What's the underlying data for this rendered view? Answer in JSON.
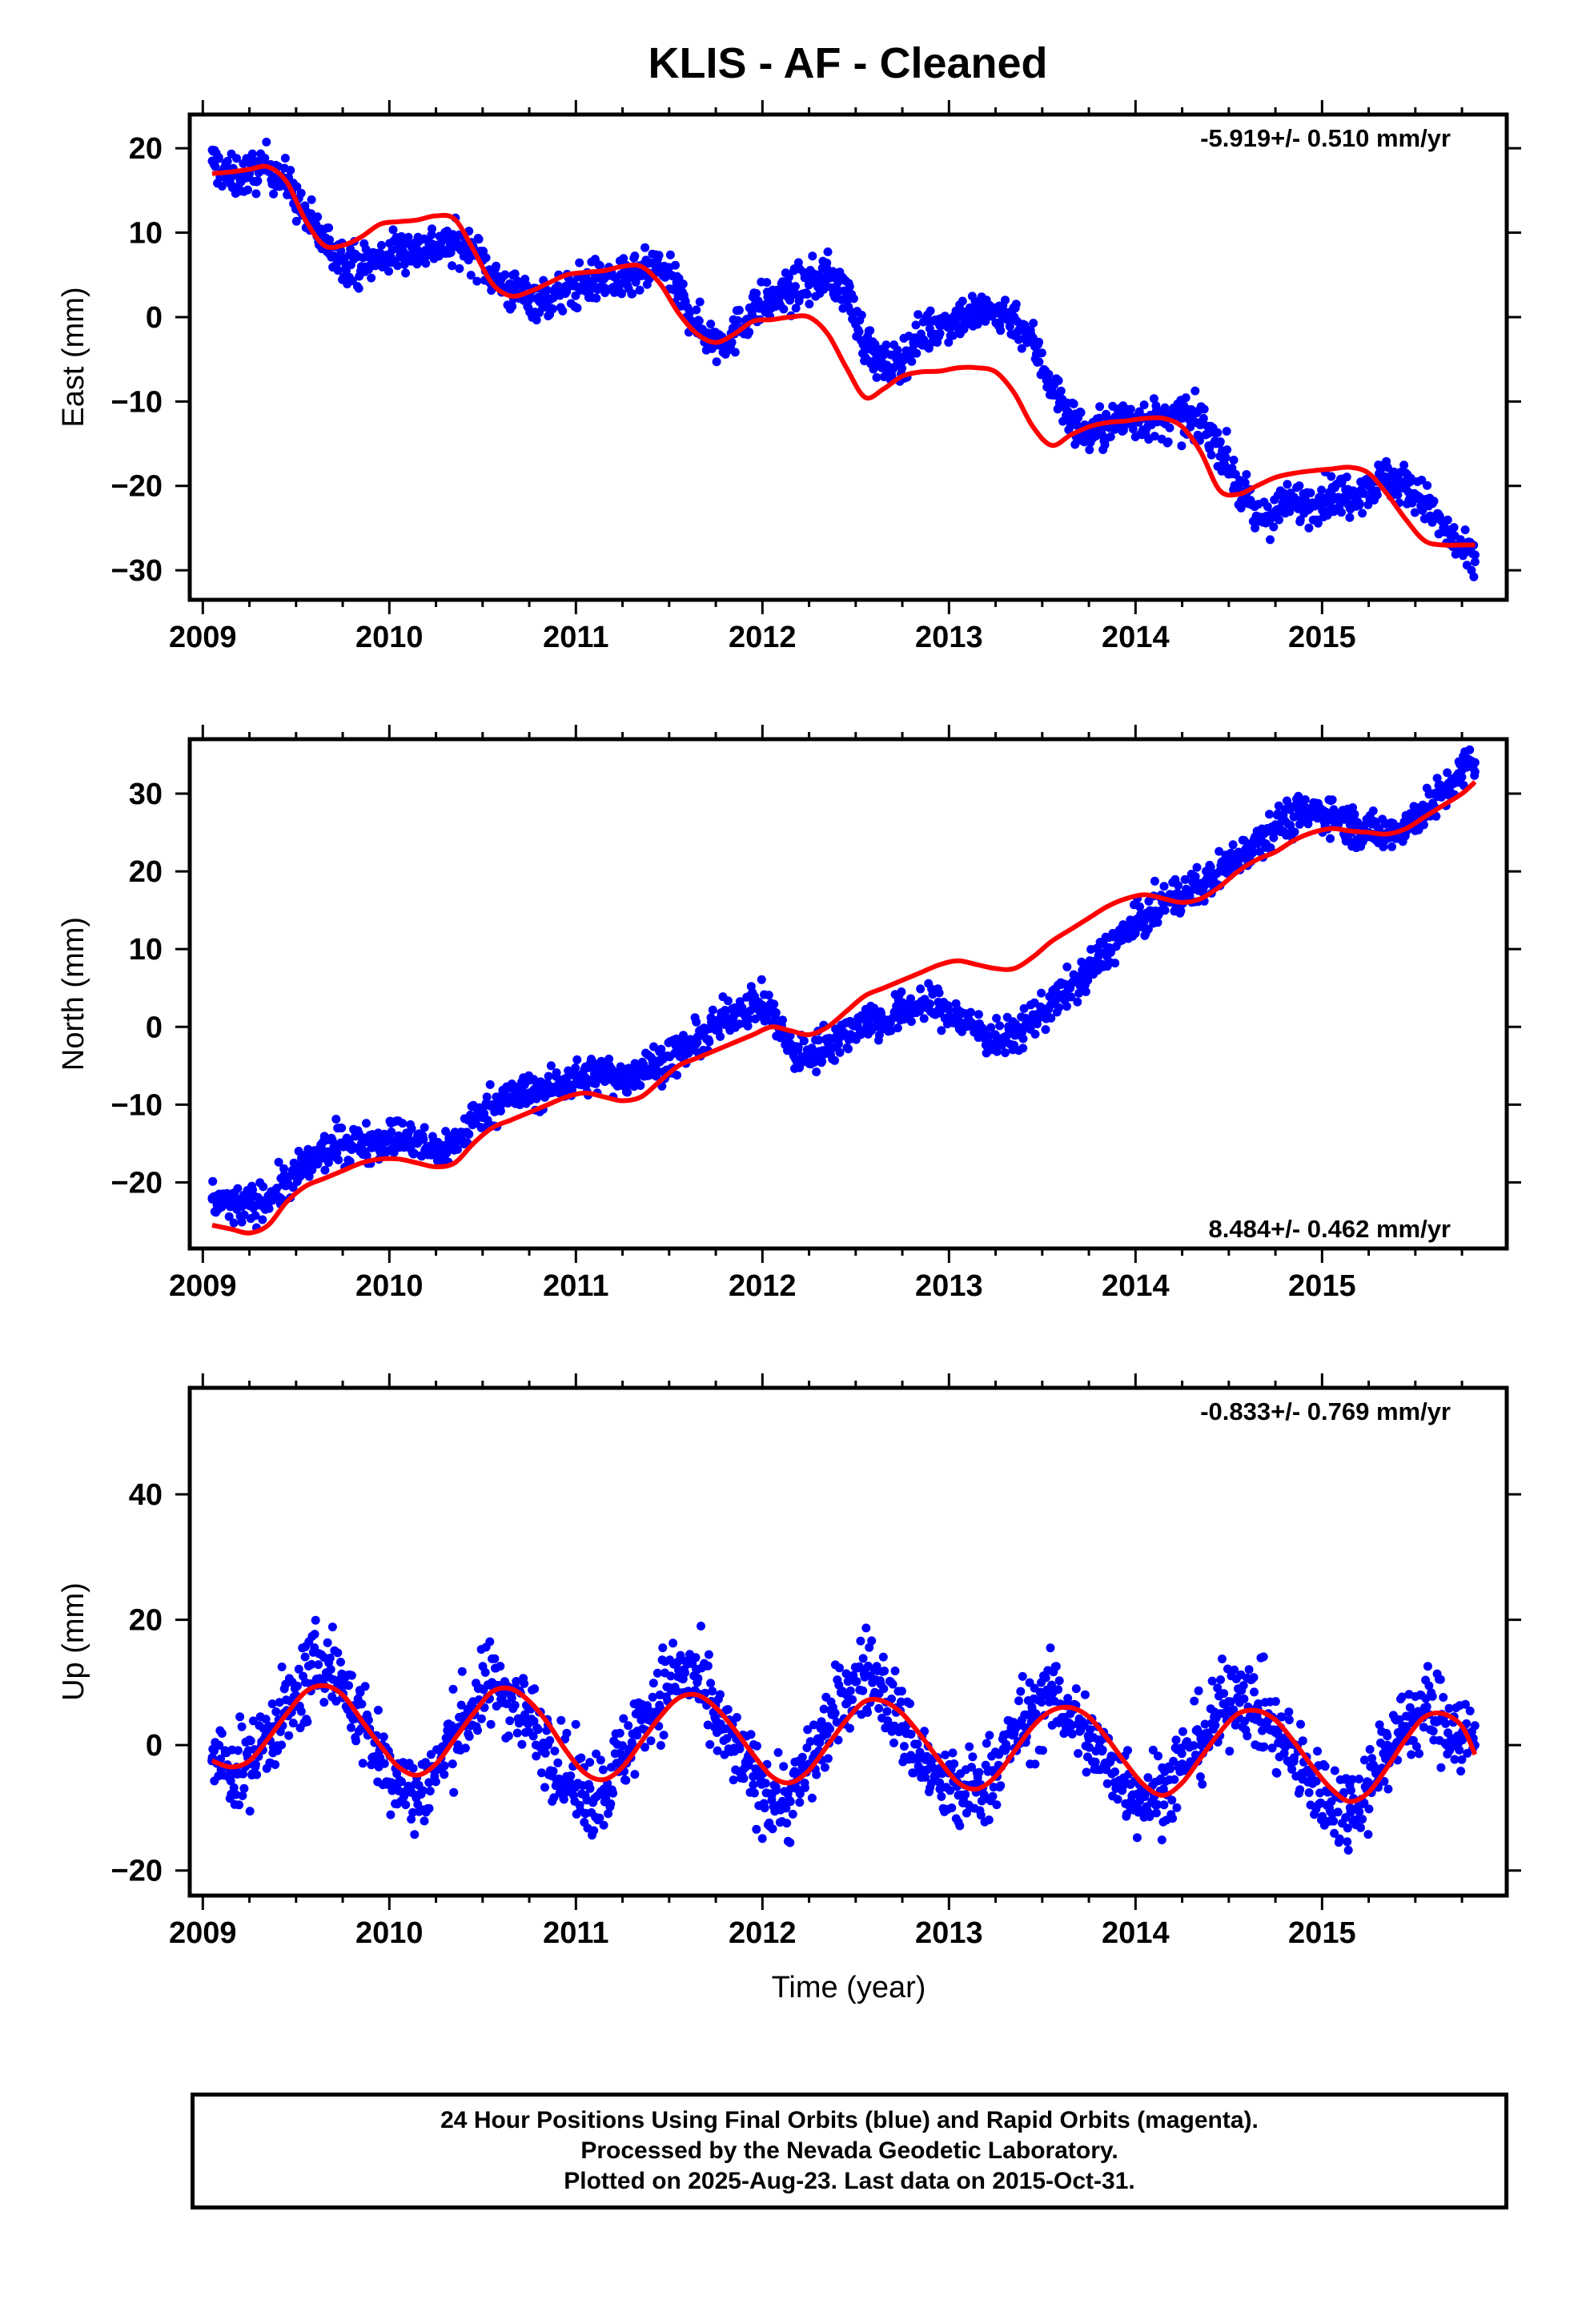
{
  "title": "KLIS  - AF - Cleaned",
  "x_ticks": [
    "2009",
    "2010",
    "2011",
    "2012",
    "2013",
    "2014",
    "2015"
  ],
  "xlabel": "Time (year)",
  "colors": {
    "data": "#0000ff",
    "model": "#ff0000",
    "axes": "#000000"
  },
  "footer": {
    "line1": "24 Hour Positions Using Final Orbits (blue) and Rapid Orbits (magenta).",
    "line2": "Processed by the Nevada Geodetic Laboratory.",
    "line3": "Plotted on 2025-Aug-23. Last data on 2015-Oct-31."
  },
  "chart_data": [
    {
      "type": "scatter",
      "ylabel": "East (mm)",
      "rate_label": "-5.919+/- 0.510 mm/yr",
      "rate_position": "top-right",
      "xlim": [
        2008.93,
        2015.99
      ],
      "ylim": [
        -33.5,
        24
      ],
      "y_ticks": [
        20,
        10,
        0,
        -10,
        -20,
        -30
      ],
      "y_tick_labels": [
        "20",
        "10",
        "0",
        "−10",
        "−20",
        "−30"
      ],
      "grid": false,
      "series": [
        {
          "kind": "points",
          "x": [
            2009.05,
            2009.15,
            2009.25,
            2009.35,
            2009.45,
            2009.55,
            2009.65,
            2009.75,
            2009.85,
            2009.95,
            2010.05,
            2010.15,
            2010.25,
            2010.35,
            2010.45,
            2010.55,
            2010.65,
            2010.75,
            2010.85,
            2010.95,
            2011.05,
            2011.15,
            2011.25,
            2011.35,
            2011.45,
            2011.55,
            2011.65,
            2011.75,
            2011.85,
            2011.95,
            2012.05,
            2012.15,
            2012.25,
            2012.35,
            2012.45,
            2012.55,
            2012.65,
            2012.75,
            2012.85,
            2012.95,
            2013.05,
            2013.15,
            2013.25,
            2013.35,
            2013.45,
            2013.55,
            2013.65,
            2013.75,
            2013.85,
            2013.95,
            2014.05,
            2014.15,
            2014.25,
            2014.35,
            2014.45,
            2014.55,
            2014.65,
            2014.75,
            2014.85,
            2014.95,
            2015.05,
            2015.15,
            2015.25,
            2015.35,
            2015.45,
            2015.55,
            2015.65,
            2015.75,
            2015.82
          ],
          "y": [
            18.5,
            16.5,
            17,
            18,
            16,
            12,
            9,
            7,
            6,
            7,
            8,
            8,
            8.5,
            8.5,
            8,
            5,
            3,
            2.5,
            2,
            3,
            4,
            4.5,
            4,
            5,
            6,
            3,
            -1,
            -3,
            -2,
            1,
            2,
            3,
            4,
            5,
            3,
            -3,
            -6,
            -5,
            -2,
            -1,
            0,
            0.5,
            0.5,
            0,
            -3,
            -8,
            -12,
            -14,
            -13,
            -12,
            -12,
            -12.5,
            -12,
            -12.5,
            -15,
            -20,
            -24,
            -23,
            -22,
            -22,
            -21,
            -21,
            -20,
            -19,
            -20,
            -22,
            -25,
            -28,
            -29
          ]
        },
        {
          "kind": "model",
          "x": [
            2009.05,
            2009.15,
            2009.25,
            2009.35,
            2009.45,
            2009.55,
            2009.65,
            2009.75,
            2009.85,
            2009.95,
            2010.05,
            2010.15,
            2010.25,
            2010.35,
            2010.45,
            2010.55,
            2010.65,
            2010.75,
            2010.85,
            2010.95,
            2011.05,
            2011.15,
            2011.25,
            2011.35,
            2011.45,
            2011.55,
            2011.65,
            2011.75,
            2011.85,
            2011.95,
            2012.05,
            2012.15,
            2012.25,
            2012.35,
            2012.45,
            2012.55,
            2012.65,
            2012.75,
            2012.85,
            2012.95,
            2013.05,
            2013.15,
            2013.25,
            2013.35,
            2013.45,
            2013.55,
            2013.65,
            2013.75,
            2013.85,
            2013.95,
            2014.05,
            2014.15,
            2014.25,
            2014.35,
            2014.45,
            2014.55,
            2014.65,
            2014.75,
            2014.85,
            2014.95,
            2015.05,
            2015.15,
            2015.25,
            2015.35,
            2015.45,
            2015.55,
            2015.65,
            2015.75,
            2015.82
          ],
          "y": [
            17,
            17.2,
            17.5,
            17.8,
            16,
            11.5,
            8.5,
            8.5,
            9.5,
            11,
            11.3,
            11.5,
            12,
            11.6,
            8,
            4,
            2.5,
            3,
            4,
            5,
            5.3,
            5.5,
            6,
            6,
            4,
            0.5,
            -2,
            -3,
            -2,
            -0.5,
            -0.3,
            0,
            0,
            -2,
            -6,
            -9.5,
            -8.5,
            -7,
            -6.5,
            -6.4,
            -6,
            -6,
            -6.5,
            -9,
            -13,
            -15.2,
            -14,
            -13,
            -12.5,
            -12.3,
            -12,
            -12,
            -13,
            -16,
            -20.5,
            -21,
            -20,
            -19,
            -18.5,
            -18.2,
            -18,
            -17.8,
            -18.5,
            -21,
            -24,
            -26.5,
            -27,
            -27,
            -27
          ]
        }
      ]
    },
    {
      "type": "scatter",
      "ylabel": "North (mm)",
      "rate_label": "8.484+/- 0.462 mm/yr",
      "rate_position": "bottom-right",
      "xlim": [
        2008.93,
        2015.99
      ],
      "ylim": [
        -28.5,
        37
      ],
      "y_ticks": [
        30,
        20,
        10,
        0,
        -10,
        -20
      ],
      "y_tick_labels": [
        "30",
        "20",
        "10",
        "0",
        "−10",
        "−20"
      ],
      "grid": false,
      "series": [
        {
          "kind": "points",
          "x": [
            2009.05,
            2009.15,
            2009.25,
            2009.35,
            2009.45,
            2009.55,
            2009.65,
            2009.75,
            2009.85,
            2009.95,
            2010.05,
            2010.15,
            2010.25,
            2010.35,
            2010.45,
            2010.55,
            2010.65,
            2010.75,
            2010.85,
            2010.95,
            2011.05,
            2011.15,
            2011.25,
            2011.35,
            2011.45,
            2011.55,
            2011.65,
            2011.75,
            2011.85,
            2011.95,
            2012.05,
            2012.15,
            2012.25,
            2012.35,
            2012.45,
            2012.55,
            2012.65,
            2012.75,
            2012.85,
            2012.95,
            2013.05,
            2013.15,
            2013.25,
            2013.35,
            2013.45,
            2013.55,
            2013.65,
            2013.75,
            2013.85,
            2013.95,
            2014.05,
            2014.15,
            2014.25,
            2014.35,
            2014.45,
            2014.55,
            2014.65,
            2014.75,
            2014.85,
            2014.95,
            2015.05,
            2015.15,
            2015.25,
            2015.35,
            2015.45,
            2015.55,
            2015.65,
            2015.75,
            2015.82
          ],
          "y": [
            -22,
            -23,
            -23,
            -22,
            -20,
            -18,
            -16,
            -15,
            -15,
            -14.5,
            -14,
            -15,
            -16,
            -15,
            -12,
            -10,
            -9,
            -8.5,
            -8,
            -7,
            -6.5,
            -6,
            -6.5,
            -5.5,
            -4.5,
            -3.5,
            -2,
            0,
            2,
            3,
            2,
            -3,
            -4,
            -2,
            -1,
            1,
            0.5,
            2,
            3,
            2.5,
            1,
            0,
            -2,
            -1,
            1,
            3,
            5,
            7,
            10,
            12,
            14,
            16,
            17,
            18,
            20,
            22,
            24,
            26,
            27,
            27.5,
            27.5,
            26,
            25,
            25,
            26,
            28,
            30,
            33,
            34
          ]
        },
        {
          "kind": "model",
          "x": [
            2009.05,
            2009.15,
            2009.25,
            2009.35,
            2009.45,
            2009.55,
            2009.65,
            2009.75,
            2009.85,
            2009.95,
            2010.05,
            2010.15,
            2010.25,
            2010.35,
            2010.45,
            2010.55,
            2010.65,
            2010.75,
            2010.85,
            2010.95,
            2011.05,
            2011.15,
            2011.25,
            2011.35,
            2011.45,
            2011.55,
            2011.65,
            2011.75,
            2011.85,
            2011.95,
            2012.05,
            2012.15,
            2012.25,
            2012.35,
            2012.45,
            2012.55,
            2012.65,
            2012.75,
            2012.85,
            2012.95,
            2013.05,
            2013.15,
            2013.25,
            2013.35,
            2013.45,
            2013.55,
            2013.65,
            2013.75,
            2013.85,
            2013.95,
            2014.05,
            2014.15,
            2014.25,
            2014.35,
            2014.45,
            2014.55,
            2014.65,
            2014.75,
            2014.85,
            2014.95,
            2015.05,
            2015.15,
            2015.25,
            2015.35,
            2015.45,
            2015.55,
            2015.65,
            2015.75,
            2015.82
          ],
          "y": [
            -25.5,
            -26,
            -26.5,
            -25.5,
            -22.5,
            -20.5,
            -19.5,
            -18.5,
            -17.5,
            -17,
            -17,
            -17.5,
            -18,
            -17.5,
            -15,
            -13,
            -12,
            -11,
            -10,
            -9,
            -8.5,
            -9,
            -9.5,
            -9,
            -7,
            -5,
            -4,
            -3,
            -2,
            -1,
            0,
            -0.5,
            -1,
            0,
            2,
            4,
            5,
            6,
            7,
            8,
            8.5,
            8,
            7.5,
            7.5,
            9,
            11,
            12.5,
            14,
            15.5,
            16.5,
            17,
            16.5,
            16,
            16.5,
            18,
            20,
            21.5,
            22.5,
            24,
            25,
            25.5,
            25.2,
            25,
            24.8,
            25.5,
            27,
            28.5,
            30,
            31.5
          ]
        }
      ]
    },
    {
      "type": "scatter",
      "ylabel": "Up (mm)",
      "rate_label": "-0.833+/- 0.769 mm/yr",
      "rate_position": "top-right",
      "xlim": [
        2008.93,
        2015.99
      ],
      "ylim": [
        -24,
        57
      ],
      "y_ticks": [
        40,
        20,
        0,
        -20
      ],
      "y_tick_labels": [
        "40",
        "20",
        "0",
        "−20"
      ],
      "grid": false,
      "series": [
        {
          "kind": "points",
          "x": [
            2009.05,
            2009.15,
            2009.25,
            2009.35,
            2009.45,
            2009.55,
            2009.65,
            2009.75,
            2009.85,
            2009.95,
            2010.05,
            2010.15,
            2010.25,
            2010.35,
            2010.45,
            2010.55,
            2010.65,
            2010.75,
            2010.85,
            2010.95,
            2011.05,
            2011.15,
            2011.25,
            2011.35,
            2011.45,
            2011.55,
            2011.65,
            2011.75,
            2011.85,
            2011.95,
            2012.05,
            2012.15,
            2012.25,
            2012.35,
            2012.45,
            2012.55,
            2012.65,
            2012.75,
            2012.85,
            2012.95,
            2013.05,
            2013.15,
            2013.25,
            2013.35,
            2013.45,
            2013.55,
            2013.65,
            2013.75,
            2013.85,
            2013.95,
            2014.05,
            2014.15,
            2014.25,
            2014.35,
            2014.45,
            2014.55,
            2014.65,
            2014.75,
            2014.85,
            2014.95,
            2015.05,
            2015.15,
            2015.25,
            2015.35,
            2015.45,
            2015.55,
            2015.65,
            2015.75,
            2015.82
          ],
          "y": [
            -2,
            -4,
            -3,
            2,
            5,
            10,
            14,
            10,
            4,
            -2,
            -6,
            -8,
            -4,
            2,
            6,
            10,
            8,
            4,
            0,
            -5,
            -8,
            -7,
            -2,
            4,
            8,
            12,
            10,
            4,
            -1,
            -5,
            -8,
            -9,
            -3,
            3,
            8,
            12,
            9,
            3,
            -2,
            -6,
            -8,
            -7,
            -4,
            2,
            5,
            8,
            5,
            1,
            -3,
            -6,
            -8,
            -7,
            -3,
            1,
            5,
            9,
            6,
            2,
            -2,
            -6,
            -9,
            -10,
            -6,
            0,
            3,
            6,
            4,
            2,
            0
          ]
        },
        {
          "kind": "model",
          "x": [
            2009.05,
            2009.15,
            2009.25,
            2009.35,
            2009.45,
            2009.55,
            2009.65,
            2009.75,
            2009.85,
            2009.95,
            2010.05,
            2010.15,
            2010.25,
            2010.35,
            2010.45,
            2010.55,
            2010.65,
            2010.75,
            2010.85,
            2010.95,
            2011.05,
            2011.15,
            2011.25,
            2011.35,
            2011.45,
            2011.55,
            2011.65,
            2011.75,
            2011.85,
            2011.95,
            2012.05,
            2012.15,
            2012.25,
            2012.35,
            2012.45,
            2012.55,
            2012.65,
            2012.75,
            2012.85,
            2012.95,
            2013.05,
            2013.15,
            2013.25,
            2013.35,
            2013.45,
            2013.55,
            2013.65,
            2013.75,
            2013.85,
            2013.95,
            2014.05,
            2014.15,
            2014.25,
            2014.35,
            2014.45,
            2014.55,
            2014.65,
            2014.75,
            2014.85,
            2014.95,
            2015.05,
            2015.15,
            2015.25,
            2015.35,
            2015.45,
            2015.55,
            2015.65,
            2015.75,
            2015.82
          ],
          "y": [
            -2.5,
            -3.5,
            -2.5,
            1,
            5,
            8.5,
            9.5,
            8,
            4,
            0,
            -3.5,
            -4.8,
            -3,
            1,
            5,
            8.5,
            9,
            7,
            3.5,
            -1,
            -4.5,
            -5.5,
            -3.5,
            0.5,
            4.5,
            7.5,
            8,
            6,
            2.5,
            -1.5,
            -5,
            -6,
            -4,
            0,
            4,
            7,
            7,
            5,
            1.5,
            -2.5,
            -6,
            -7,
            -5,
            -1,
            3,
            5.5,
            6,
            4.5,
            1,
            -3,
            -6.5,
            -8,
            -6,
            -2,
            2,
            5,
            5.5,
            4,
            0.5,
            -3.5,
            -7,
            -9,
            -7.5,
            -3.5,
            1,
            4.5,
            5,
            3,
            -1.5
          ]
        }
      ]
    }
  ]
}
